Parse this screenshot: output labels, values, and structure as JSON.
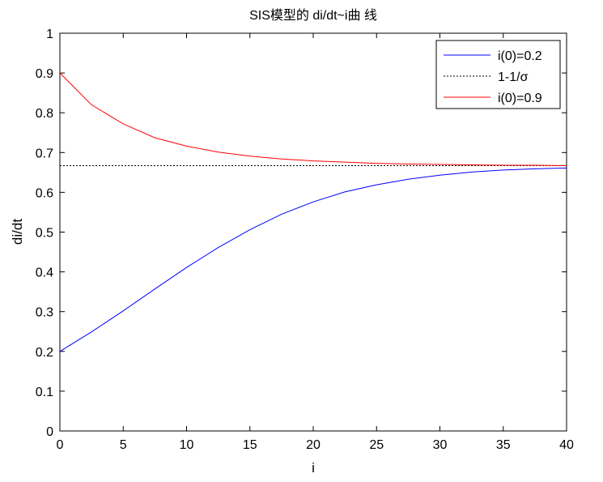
{
  "chart_data": {
    "type": "line",
    "title": "SIS模型的 di/dt~i曲 线",
    "xlabel": "i",
    "ylabel": "di/dt",
    "xlim": [
      0,
      40
    ],
    "ylim": [
      0,
      1
    ],
    "xticks": [
      0,
      5,
      10,
      15,
      20,
      25,
      30,
      35,
      40
    ],
    "yticks": [
      0,
      0.1,
      0.2,
      0.3,
      0.4,
      0.5,
      0.6,
      0.7,
      0.8,
      0.9,
      1
    ],
    "grid": false,
    "legend_position": "top-right",
    "series": [
      {
        "name": "i(0)=0.2",
        "color": "#0000ff",
        "style": "solid",
        "x": [
          0,
          2.5,
          5,
          7.5,
          10,
          12.5,
          15,
          17.5,
          20,
          22.5,
          25,
          27.5,
          30,
          32.5,
          35,
          37.5,
          40
        ],
        "values": [
          0.2,
          0.249,
          0.302,
          0.357,
          0.411,
          0.461,
          0.506,
          0.545,
          0.576,
          0.601,
          0.619,
          0.633,
          0.643,
          0.651,
          0.656,
          0.659,
          0.661
        ]
      },
      {
        "name": "1-1/σ",
        "color": "#000000",
        "style": "dotted",
        "x": [
          0,
          40
        ],
        "values": [
          0.667,
          0.667
        ]
      },
      {
        "name": "i(0)=0.9",
        "color": "#ff0000",
        "style": "solid",
        "x": [
          0,
          2.5,
          5,
          7.5,
          10,
          12.5,
          15,
          17.5,
          20,
          22.5,
          25,
          27.5,
          30,
          32.5,
          35,
          37.5,
          40
        ],
        "values": [
          0.9,
          0.82,
          0.772,
          0.737,
          0.716,
          0.701,
          0.691,
          0.684,
          0.679,
          0.676,
          0.673,
          0.671,
          0.67,
          0.669,
          0.668,
          0.668,
          0.667
        ]
      }
    ]
  }
}
